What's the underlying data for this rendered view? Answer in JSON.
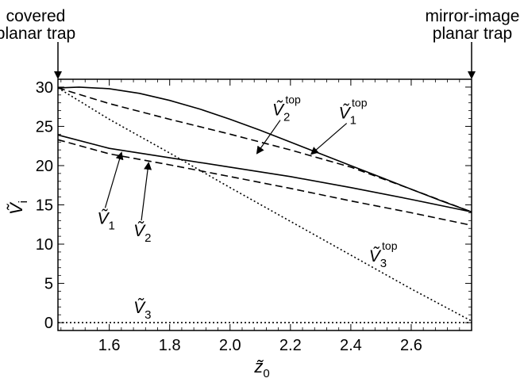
{
  "chart_data": {
    "type": "line",
    "title": "",
    "xlabel": "z̃",
    "xlabel_sub": "0",
    "ylabel": "Ṽ",
    "ylabel_sub": "i",
    "xlim": [
      1.43,
      2.8
    ],
    "ylim": [
      -1,
      31
    ],
    "xticks": [
      1.6,
      1.8,
      2.0,
      2.2,
      2.4,
      2.6
    ],
    "xtick_labels": [
      "1.6",
      "1.8",
      "2.0",
      "2.2",
      "2.4",
      "2.6"
    ],
    "yticks": [
      0,
      5,
      10,
      15,
      20,
      25,
      30
    ],
    "ytick_labels": [
      "0",
      "5",
      "10",
      "15",
      "20",
      "25",
      "30"
    ],
    "top_annotations": {
      "left": [
        "covered",
        "planar trap"
      ],
      "right": [
        "mirror-image",
        "planar trap"
      ]
    },
    "series": [
      {
        "name": "Ṽ1top",
        "label_base": "Ṽ",
        "label_sub": "1",
        "label_sup": "top",
        "style": "solid",
        "x": [
          1.43,
          1.5,
          1.6,
          1.7,
          1.8,
          1.9,
          2.0,
          2.1,
          2.2,
          2.3,
          2.4,
          2.5,
          2.6,
          2.7,
          2.8
        ],
        "y": [
          29.9,
          30.0,
          29.8,
          29.2,
          28.3,
          27.2,
          25.9,
          24.5,
          23.0,
          21.5,
          20.0,
          18.5,
          17.0,
          15.5,
          14.1
        ]
      },
      {
        "name": "Ṽ2top",
        "label_base": "Ṽ",
        "label_sub": "2",
        "label_sup": "top",
        "style": "dashed",
        "x": [
          1.43,
          1.6,
          1.8,
          2.0,
          2.2,
          2.4,
          2.6,
          2.8
        ],
        "y": [
          29.9,
          27.9,
          25.9,
          24.0,
          22.0,
          19.8,
          17.0,
          14.1
        ]
      },
      {
        "name": "Ṽ1",
        "label_base": "Ṽ",
        "label_sub": "1",
        "label_sup": "",
        "style": "solid",
        "x": [
          1.43,
          1.6,
          1.8,
          2.0,
          2.2,
          2.4,
          2.6,
          2.8
        ],
        "y": [
          23.9,
          22.2,
          21.0,
          19.8,
          18.6,
          17.2,
          15.7,
          14.1
        ]
      },
      {
        "name": "Ṽ2",
        "label_base": "Ṽ",
        "label_sub": "2",
        "label_sup": "",
        "style": "dashed",
        "x": [
          1.43,
          1.6,
          1.8,
          2.0,
          2.2,
          2.4,
          2.6,
          2.8
        ],
        "y": [
          23.3,
          21.5,
          20.1,
          18.6,
          17.1,
          15.5,
          14.0,
          12.4
        ]
      },
      {
        "name": "Ṽ3top",
        "label_base": "Ṽ",
        "label_sub": "3",
        "label_sup": "top",
        "style": "dotted",
        "x": [
          1.43,
          1.6,
          1.8,
          2.0,
          2.2,
          2.4,
          2.6,
          2.8
        ],
        "y": [
          29.9,
          25.9,
          21.6,
          17.2,
          12.9,
          8.6,
          4.3,
          0.2
        ]
      },
      {
        "name": "Ṽ3",
        "label_base": "Ṽ",
        "label_sub": "3",
        "label_sup": "",
        "style": "dotted",
        "x": [
          1.43,
          2.8
        ],
        "y": [
          0.0,
          0.0
        ]
      }
    ],
    "annotations": [
      {
        "series": "Ṽ1top",
        "label_at": [
          2.36,
          26.0
        ],
        "point": [
          2.27,
          21.5
        ],
        "anchor": "start"
      },
      {
        "series": "Ṽ2top",
        "label_at": [
          2.14,
          26.4
        ],
        "point": [
          2.09,
          21.6
        ],
        "anchor": "start"
      },
      {
        "series": "Ṽ1",
        "label_at": [
          1.56,
          12.6
        ],
        "point": [
          1.64,
          21.6
        ],
        "anchor": "start"
      },
      {
        "series": "Ṽ2",
        "label_at": [
          1.68,
          11.0
        ],
        "point": [
          1.73,
          20.3
        ],
        "anchor": "start"
      },
      {
        "series": "Ṽ3top",
        "label_at": [
          2.46,
          7.8
        ],
        "point": null,
        "anchor": "start"
      },
      {
        "series": "Ṽ3",
        "label_at": [
          1.68,
          1.2
        ],
        "point": null,
        "anchor": "start"
      }
    ]
  }
}
